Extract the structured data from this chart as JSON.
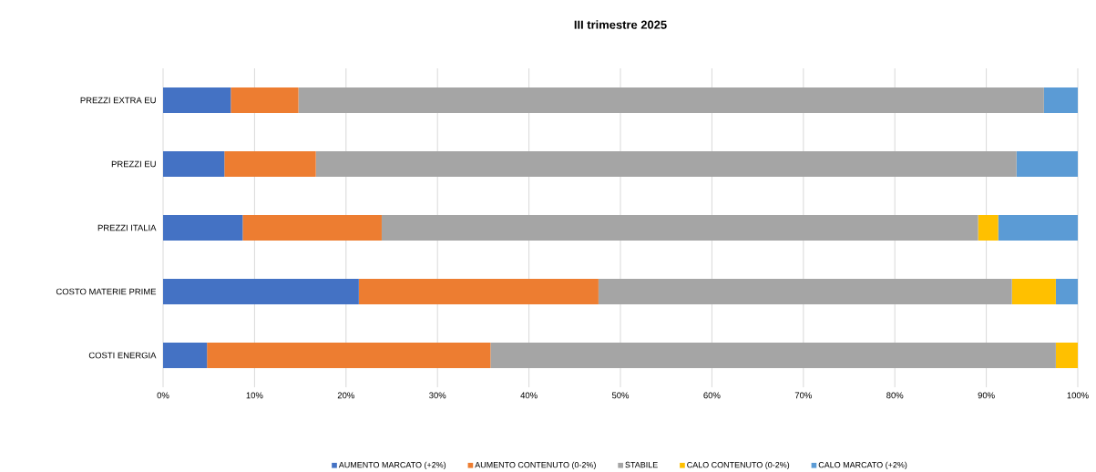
{
  "chart_data": {
    "type": "bar",
    "orientation": "horizontal",
    "stacked": true,
    "title": "III trimestre 2025",
    "categories": [
      "PREZZI EXTRA EU",
      "PREZZI EU",
      "PREZZI ITALIA",
      "COSTO MATERIE PRIME",
      "COSTI ENERGIA"
    ],
    "series": [
      {
        "name": "AUMENTO MARCATO (+2%)",
        "color": "#4472c4",
        "values": [
          7.4,
          6.7,
          8.7,
          21.4,
          4.8
        ]
      },
      {
        "name": "AUMENTO CONTENUTO (0-2%)",
        "color": "#ed7d31",
        "values": [
          7.4,
          10.0,
          15.2,
          26.2,
          31.0
        ]
      },
      {
        "name": "STABILE",
        "color": "#a5a5a5",
        "values": [
          81.5,
          76.6,
          65.2,
          45.2,
          61.8
        ]
      },
      {
        "name": "CALO CONTENUTO (0-2%)",
        "color": "#ffc000",
        "values": [
          0,
          0,
          2.2,
          4.8,
          2.4
        ]
      },
      {
        "name": "CALO MARCATO (+2%)",
        "color": "#5b9bd5",
        "values": [
          3.7,
          6.7,
          8.7,
          2.4,
          0
        ]
      }
    ],
    "xlim": [
      0,
      100
    ],
    "xticks": [
      {
        "value": 0,
        "label": "0%"
      },
      {
        "value": 10,
        "label": "10%"
      },
      {
        "value": 20,
        "label": "20%"
      },
      {
        "value": 30,
        "label": "30%"
      },
      {
        "value": 40,
        "label": "40%"
      },
      {
        "value": 50,
        "label": "50%"
      },
      {
        "value": 60,
        "label": "60%"
      },
      {
        "value": 70,
        "label": "70%"
      },
      {
        "value": 80,
        "label": "80%"
      },
      {
        "value": 90,
        "label": "90%"
      },
      {
        "value": 100,
        "label": "100%"
      }
    ],
    "grid": "x",
    "legend": "bottom"
  }
}
